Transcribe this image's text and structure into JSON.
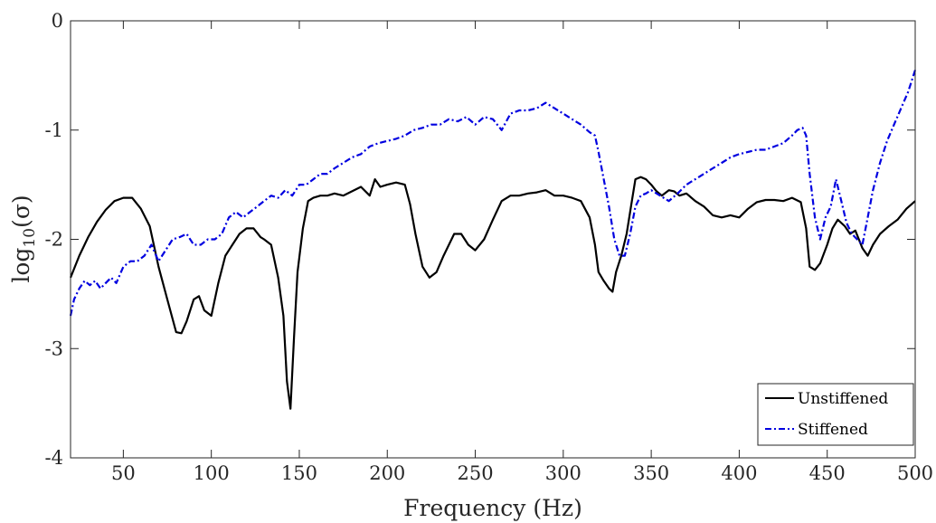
{
  "chart_data": {
    "type": "line",
    "title": "",
    "xlabel": "Frequency (Hz)",
    "ylabel_main": "log",
    "ylabel_sub": "10",
    "ylabel_arg": "(σ)",
    "xlim": [
      20,
      500
    ],
    "ylim": [
      -4,
      0
    ],
    "xticks": [
      50,
      100,
      150,
      200,
      250,
      300,
      350,
      400,
      450,
      500
    ],
    "xtick_labels": [
      "50",
      "100",
      "150",
      "200",
      "250",
      "300",
      "350",
      "400",
      "450",
      "500"
    ],
    "yticks": [
      -4,
      -3,
      -2,
      -1,
      0
    ],
    "ytick_labels": [
      "-4",
      "-3",
      "-2",
      "-1",
      "0"
    ],
    "grid": false,
    "legend_position": "bottom-right",
    "series": [
      {
        "name": "Unstiffened",
        "color": "#000000",
        "dash": "solid",
        "x": [
          20,
          25,
          30,
          35,
          40,
          45,
          50,
          55,
          60,
          65,
          70,
          75,
          80,
          83,
          86,
          90,
          93,
          96,
          100,
          104,
          108,
          112,
          116,
          120,
          124,
          128,
          130,
          134,
          138,
          141,
          143,
          145,
          147,
          149,
          152,
          155,
          158,
          162,
          166,
          170,
          175,
          180,
          185,
          190,
          193,
          196,
          200,
          205,
          210,
          213,
          216,
          218,
          220,
          224,
          228,
          232,
          235,
          238,
          242,
          246,
          250,
          255,
          260,
          265,
          270,
          275,
          280,
          285,
          290,
          295,
          300,
          305,
          310,
          315,
          318,
          320,
          323,
          326,
          328,
          330,
          333,
          336,
          339,
          341,
          344,
          347,
          350,
          353,
          356,
          360,
          363,
          366,
          370,
          375,
          380,
          385,
          390,
          395,
          400,
          405,
          410,
          415,
          420,
          425,
          430,
          435,
          438,
          440,
          443,
          446,
          450,
          453,
          456,
          460,
          463,
          466,
          470,
          473,
          476,
          480,
          485,
          490,
          495,
          500
        ],
        "y": [
          -2.35,
          -2.15,
          -1.98,
          -1.84,
          -1.73,
          -1.65,
          -1.62,
          -1.62,
          -1.72,
          -1.88,
          -2.25,
          -2.55,
          -2.85,
          -2.86,
          -2.75,
          -2.55,
          -2.52,
          -2.65,
          -2.7,
          -2.4,
          -2.15,
          -2.05,
          -1.95,
          -1.9,
          -1.9,
          -1.98,
          -2.0,
          -2.05,
          -2.35,
          -2.7,
          -3.3,
          -3.55,
          -2.9,
          -2.3,
          -1.9,
          -1.65,
          -1.62,
          -1.6,
          -1.6,
          -1.58,
          -1.6,
          -1.56,
          -1.52,
          -1.6,
          -1.45,
          -1.52,
          -1.5,
          -1.48,
          -1.5,
          -1.68,
          -1.95,
          -2.1,
          -2.25,
          -2.35,
          -2.3,
          -2.15,
          -2.05,
          -1.95,
          -1.95,
          -2.05,
          -2.1,
          -2.0,
          -1.82,
          -1.65,
          -1.6,
          -1.6,
          -1.58,
          -1.57,
          -1.55,
          -1.6,
          -1.6,
          -1.62,
          -1.65,
          -1.8,
          -2.05,
          -2.3,
          -2.38,
          -2.45,
          -2.48,
          -2.3,
          -2.15,
          -1.95,
          -1.65,
          -1.45,
          -1.43,
          -1.45,
          -1.5,
          -1.56,
          -1.6,
          -1.55,
          -1.56,
          -1.6,
          -1.58,
          -1.65,
          -1.7,
          -1.78,
          -1.8,
          -1.78,
          -1.8,
          -1.72,
          -1.66,
          -1.64,
          -1.64,
          -1.65,
          -1.62,
          -1.66,
          -1.9,
          -2.25,
          -2.28,
          -2.22,
          -2.05,
          -1.9,
          -1.82,
          -1.88,
          -1.95,
          -1.92,
          -2.08,
          -2.15,
          -2.05,
          -1.95,
          -1.88,
          -1.82,
          -1.72,
          -1.65
        ]
      },
      {
        "name": "Stiffened",
        "color": "#0000e0",
        "dash": "dashdot",
        "x": [
          20,
          22,
          25,
          28,
          31,
          34,
          37,
          40,
          43,
          46,
          50,
          54,
          58,
          62,
          66,
          70,
          74,
          78,
          82,
          86,
          90,
          94,
          98,
          102,
          106,
          110,
          114,
          118,
          122,
          126,
          130,
          134,
          138,
          142,
          146,
          150,
          154,
          158,
          162,
          166,
          170,
          175,
          180,
          185,
          190,
          195,
          200,
          205,
          210,
          215,
          220,
          225,
          230,
          235,
          240,
          245,
          250,
          255,
          260,
          265,
          270,
          275,
          280,
          285,
          290,
          295,
          300,
          305,
          310,
          315,
          318,
          320,
          323,
          326,
          329,
          332,
          335,
          338,
          341,
          344,
          347,
          350,
          355,
          360,
          365,
          370,
          375,
          380,
          385,
          390,
          395,
          400,
          405,
          410,
          415,
          420,
          425,
          430,
          433,
          436,
          438,
          440,
          443,
          446,
          449,
          452,
          455,
          458,
          461,
          464,
          467,
          470,
          473,
          476,
          480,
          484,
          488,
          492,
          496,
          500
        ],
        "y": [
          -2.7,
          -2.55,
          -2.45,
          -2.38,
          -2.42,
          -2.38,
          -2.45,
          -2.4,
          -2.35,
          -2.4,
          -2.25,
          -2.2,
          -2.2,
          -2.15,
          -2.05,
          -2.2,
          -2.1,
          -2.0,
          -1.98,
          -1.95,
          -2.05,
          -2.05,
          -2.0,
          -2.0,
          -1.95,
          -1.8,
          -1.75,
          -1.8,
          -1.75,
          -1.7,
          -1.65,
          -1.6,
          -1.62,
          -1.55,
          -1.6,
          -1.5,
          -1.5,
          -1.45,
          -1.4,
          -1.4,
          -1.35,
          -1.3,
          -1.25,
          -1.22,
          -1.15,
          -1.12,
          -1.1,
          -1.08,
          -1.05,
          -1.0,
          -0.98,
          -0.95,
          -0.95,
          -0.9,
          -0.92,
          -0.88,
          -0.95,
          -0.88,
          -0.9,
          -1.0,
          -0.85,
          -0.82,
          -0.82,
          -0.8,
          -0.75,
          -0.8,
          -0.85,
          -0.9,
          -0.95,
          -1.02,
          -1.05,
          -1.2,
          -1.45,
          -1.7,
          -2.0,
          -2.15,
          -2.15,
          -1.95,
          -1.7,
          -1.6,
          -1.58,
          -1.55,
          -1.6,
          -1.65,
          -1.58,
          -1.5,
          -1.45,
          -1.4,
          -1.35,
          -1.3,
          -1.25,
          -1.22,
          -1.2,
          -1.18,
          -1.18,
          -1.15,
          -1.12,
          -1.05,
          -1.0,
          -0.98,
          -1.05,
          -1.4,
          -1.8,
          -2.0,
          -1.8,
          -1.7,
          -1.45,
          -1.65,
          -1.85,
          -1.95,
          -2.0,
          -2.05,
          -1.8,
          -1.55,
          -1.3,
          -1.1,
          -0.95,
          -0.8,
          -0.65,
          -0.45
        ]
      }
    ]
  }
}
